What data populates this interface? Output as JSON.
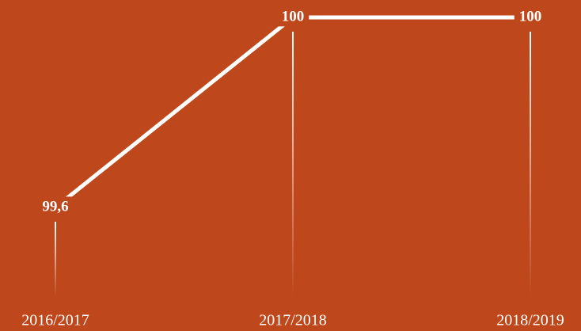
{
  "chart_data": {
    "type": "line",
    "categories": [
      "2016/2017",
      "2017/2018",
      "2018/2019"
    ],
    "series": [
      {
        "color": "#ffffff",
        "values": [
          99.6,
          100,
          100
        ],
        "value_labels": [
          "99,6",
          "100",
          "100"
        ]
      }
    ],
    "ylim": [
      99.5,
      100
    ]
  }
}
